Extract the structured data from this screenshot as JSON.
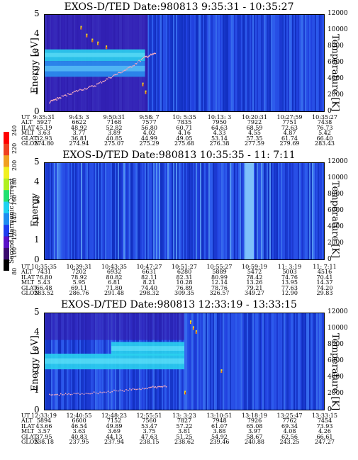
{
  "colorbar": {
    "label": "Second Harmonic Current",
    "ticks": [
      "80",
      "100",
      "120",
      "140",
      "160",
      "180",
      "200",
      "220",
      "240"
    ],
    "colors": [
      "#000000",
      "#3a0a6e",
      "#5a10c8",
      "#1e3cf0",
      "#1e8cf0",
      "#1ed2f0",
      "#20e070",
      "#b0f020",
      "#f0f020",
      "#f0a020",
      "#f04020",
      "#ff0000"
    ]
  },
  "panels": [
    {
      "title": "EXOS-D/TED   Date:980813  9:35:31 - 10:35:27",
      "ylabel_left": "Energy [eV]",
      "ylabel_right": "Temperature [K]",
      "yticks_left": [
        "0",
        "1",
        "2",
        "3",
        "4",
        "5"
      ],
      "yticks_right": [
        "0",
        "2000",
        "4000",
        "6000",
        "8000",
        "10000",
        "12000"
      ],
      "orbit": {
        "labels": [
          "UT",
          "ALT",
          "ILAT",
          "MLT",
          "GLAT",
          "GLON"
        ],
        "columns": [
          [
            "9:35:31",
            "5927",
            "45.19",
            "3.63",
            "32.93",
            "274.80"
          ],
          [
            "9:43: 3",
            "6622",
            "48.92",
            "3.77",
            "36.81",
            "274.94"
          ],
          [
            "9:50:31",
            "7168",
            "52.82",
            "3.89",
            "40.85",
            "275.07"
          ],
          [
            "9:58: 7",
            "7577",
            "56.80",
            "4.02",
            "44.99",
            "275.29"
          ],
          [
            "10: 5:35",
            "7835",
            "60.71",
            "4.16",
            "49.05",
            "275.68"
          ],
          [
            "10:13: 3",
            "7950",
            "64.63",
            "4.33",
            "53.14",
            "276.38"
          ],
          [
            "10:20:31",
            "7922",
            "68.59",
            "4.55",
            "57.35",
            "277.59"
          ],
          [
            "10:27:59",
            "7751",
            "72.63",
            "4.87",
            "61.74",
            "279.69"
          ],
          [
            "10:35:27",
            "7438",
            "76.73",
            "5.42",
            "66.40",
            "283.43"
          ]
        ]
      }
    },
    {
      "title": "EXOS-D/TED   Date:980813  10:35:35 - 11: 7:11",
      "ylabel_left": "Energy",
      "ylabel_right": "Temperature [K]",
      "yticks_left": [
        "0",
        "1",
        "2",
        "3",
        "4",
        "5"
      ],
      "yticks_right": [
        "0",
        "2000",
        "4000",
        "6000",
        "8000",
        "10000",
        "12000"
      ],
      "orbit": {
        "labels": [
          "UT",
          "ALT",
          "ILAT",
          "MLT",
          "GLAT",
          "GLON"
        ],
        "columns": [
          [
            "10:35:35",
            "7431",
            "76.80",
            "5.43",
            "66.48",
            "283.52"
          ],
          [
            "10:39:31",
            "7202",
            "78.92",
            "5.95",
            "69.11",
            "286.76"
          ],
          [
            "10:43:35",
            "6932",
            "80.82",
            "6.81",
            "71.80",
            "291.48"
          ],
          [
            "10:47:27",
            "6631",
            "82.11",
            "8.21",
            "74.40",
            "298.32"
          ],
          [
            "10:51:27",
            "6280",
            "82.31",
            "10.28",
            "76.89",
            "309.35"
          ],
          [
            "10:55:27",
            "5889",
            "80.99",
            "12.14",
            "78.76",
            "326.57"
          ],
          [
            "10:59:19",
            "5472",
            "78.42",
            "13.26",
            "79.21",
            "349.27"
          ],
          [
            "11: 3:19",
            "5003",
            "74.76",
            "13.95",
            "77.63",
            "12.90"
          ],
          [
            "11: 7:11",
            "4516",
            "70.41",
            "14.37",
            "74.20",
            "29.83"
          ]
        ]
      }
    },
    {
      "title": "EXOS-D/TED   Date:980813  12:33:19 - 13:33:15",
      "ylabel_left": "Energy [eV]",
      "ylabel_right": "Temperature [K]",
      "yticks_left": [
        "0",
        "1",
        "2",
        "3",
        "4",
        "5"
      ],
      "yticks_right": [
        "0",
        "2000",
        "4000",
        "6000",
        "8000",
        "10000",
        "12000"
      ],
      "orbit": {
        "labels": [
          "UT",
          "ALT",
          "ILAT",
          "MLT",
          "GLAT",
          "GLON"
        ],
        "columns": [
          [
            "12:33:19",
            "5894",
            "43.66",
            "3.57",
            "37.95",
            "238.18"
          ],
          [
            "12:40:55",
            "6600",
            "46.54",
            "3.63",
            "40.83",
            "237.95"
          ],
          [
            "12:48:23",
            "7152",
            "49.89",
            "3.69",
            "44.13",
            "237.94"
          ],
          [
            "12:55:51",
            "7560",
            "53.47",
            "3.75",
            "47.63",
            "238.15"
          ],
          [
            "13: 3:23",
            "7827",
            "57.22",
            "3.81",
            "51.25",
            "238.62"
          ],
          [
            "13:10:51",
            "7948",
            "61.07",
            "3.88",
            "54.92",
            "239.46"
          ],
          [
            "13:18:19",
            "7926",
            "65.08",
            "3.97",
            "58.67",
            "240.88"
          ],
          [
            "13:25:47",
            "7762",
            "69.34",
            "4.08",
            "62.56",
            "243.25"
          ],
          [
            "13:33:15",
            "7454",
            "73.93",
            "4.26",
            "66.61",
            "247.27"
          ]
        ]
      }
    }
  ],
  "chart_data": [
    {
      "type": "heatmap",
      "title": "EXOS-D/TED   Date:980813  9:35:31 - 10:35:27",
      "ylabel": "Energy [eV]",
      "y2label": "Temperature [K]",
      "ylim": [
        0,
        5
      ],
      "y2lim": [
        0,
        12000
      ],
      "x_ticks": [
        "9:35:31",
        "9:43: 3",
        "9:50:31",
        "9:58: 7",
        "10: 5:35",
        "10:13: 3",
        "10:20:31",
        "10:27:59",
        "10:35:27"
      ],
      "bands": [
        {
          "x_start": 0.0,
          "x_end": 0.36,
          "energy_low": 2.6,
          "energy_high": 3.2,
          "intensity": "high"
        },
        {
          "x_start": 0.0,
          "x_end": 0.36,
          "energy_low": 1.8,
          "energy_high": 2.6,
          "intensity": "medium"
        }
      ],
      "temperature_trace": [
        {
          "x": 0.02,
          "y": 1200
        },
        {
          "x": 0.06,
          "y": 1800
        },
        {
          "x": 0.12,
          "y": 2600
        },
        {
          "x": 0.18,
          "y": 3200
        },
        {
          "x": 0.24,
          "y": 4300
        },
        {
          "x": 0.3,
          "y": 5300
        },
        {
          "x": 0.36,
          "y": 6700
        },
        {
          "x": 0.4,
          "y": 7200
        }
      ]
    },
    {
      "type": "heatmap",
      "title": "EXOS-D/TED   Date:980813  10:35:35 - 11: 7:11",
      "ylabel": "Energy",
      "y2label": "Temperature [K]",
      "ylim": [
        0,
        5
      ],
      "y2lim": [
        0,
        12000
      ],
      "x_ticks": [
        "10:35:35",
        "10:39:31",
        "10:43:35",
        "10:47:27",
        "10:51:27",
        "10:55:27",
        "10:59:19",
        "11: 3:19",
        "11: 7:11"
      ],
      "bands": [],
      "temperature_trace": []
    },
    {
      "type": "heatmap",
      "title": "EXOS-D/TED   Date:980813  12:33:19 - 13:33:15",
      "ylabel": "Energy [eV]",
      "y2label": "Temperature [K]",
      "ylim": [
        0,
        5
      ],
      "y2lim": [
        0,
        12000
      ],
      "x_ticks": [
        "12:33:19",
        "12:40:55",
        "12:48:23",
        "12:55:51",
        "13: 3:23",
        "13:10:51",
        "13:18:19",
        "13:25:47",
        "13:33:15"
      ],
      "bands": [
        {
          "x_start": 0.0,
          "x_end": 0.5,
          "energy_low": 2.1,
          "energy_high": 2.9,
          "intensity": "high"
        },
        {
          "x_start": 0.24,
          "x_end": 0.5,
          "energy_low": 2.8,
          "energy_high": 3.5,
          "intensity": "high"
        }
      ],
      "temperature_trace": [
        {
          "x": 0.02,
          "y": 1900
        },
        {
          "x": 0.1,
          "y": 2000
        },
        {
          "x": 0.2,
          "y": 2200
        },
        {
          "x": 0.3,
          "y": 2500
        },
        {
          "x": 0.38,
          "y": 2800
        },
        {
          "x": 0.44,
          "y": 3000
        }
      ]
    }
  ]
}
